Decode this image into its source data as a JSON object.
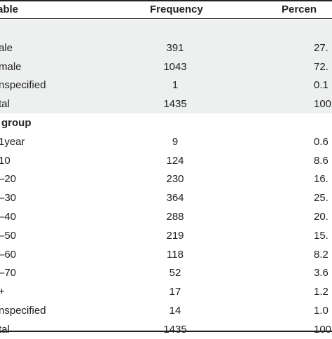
{
  "header": {
    "variable": "able",
    "frequency": "Frequency",
    "percent": "Percen"
  },
  "rows": [
    {
      "variable": "",
      "frequency": "",
      "percent": "",
      "kind": "group",
      "shaded": true
    },
    {
      "variable": "ale",
      "frequency": "391",
      "percent": "27.",
      "kind": "data",
      "shaded": true
    },
    {
      "variable": "male",
      "frequency": "1043",
      "percent": "72.",
      "kind": "data",
      "shaded": true
    },
    {
      "variable": "nspecified",
      "frequency": "1",
      "percent": "0.1",
      "kind": "data",
      "shaded": true
    },
    {
      "variable": "tal",
      "frequency": "1435",
      "percent": "100",
      "kind": "data",
      "shaded": true
    },
    {
      "variable": "group",
      "frequency": "",
      "percent": "",
      "kind": "group",
      "shaded": false
    },
    {
      "variable": "1year",
      "frequency": "9",
      "percent": "0.6",
      "kind": "data",
      "shaded": false
    },
    {
      "variable": "10",
      "frequency": "124",
      "percent": "8.6",
      "kind": "data",
      "shaded": false
    },
    {
      "variable": "–20",
      "frequency": "230",
      "percent": "16.",
      "kind": "data",
      "shaded": false
    },
    {
      "variable": "–30",
      "frequency": "364",
      "percent": "25.",
      "kind": "data",
      "shaded": false
    },
    {
      "variable": "–40",
      "frequency": "288",
      "percent": "20.",
      "kind": "data",
      "shaded": false
    },
    {
      "variable": "–50",
      "frequency": "219",
      "percent": "15.",
      "kind": "data",
      "shaded": false
    },
    {
      "variable": "–60",
      "frequency": "118",
      "percent": "8.2",
      "kind": "data",
      "shaded": false
    },
    {
      "variable": "–70",
      "frequency": "52",
      "percent": "3.6",
      "kind": "data",
      "shaded": false
    },
    {
      "variable": "+",
      "frequency": "17",
      "percent": "1.2",
      "kind": "data",
      "shaded": false
    },
    {
      "variable": "nspecified",
      "frequency": "14",
      "percent": "1.0",
      "kind": "data",
      "shaded": false
    },
    {
      "variable": "tal",
      "frequency": "1435",
      "percent": "100",
      "kind": "data",
      "shaded": false
    }
  ]
}
